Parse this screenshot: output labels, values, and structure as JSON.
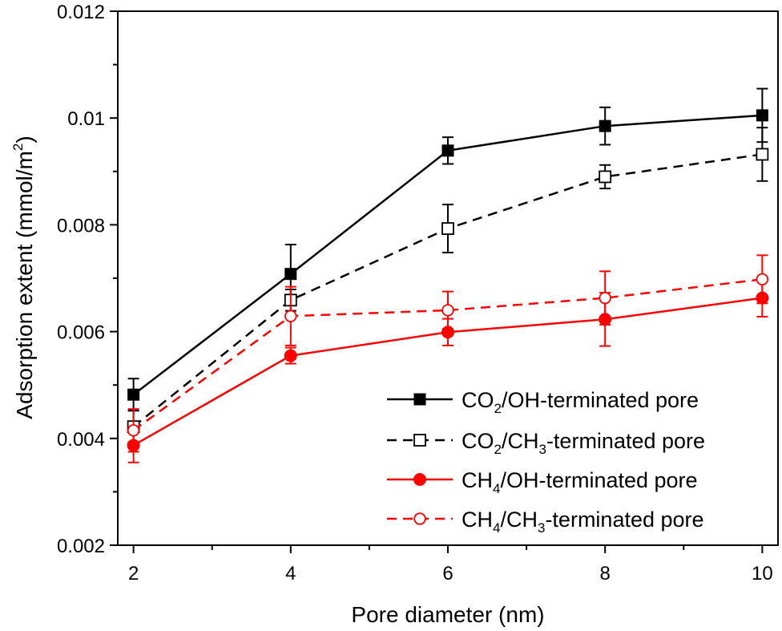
{
  "chart_data": {
    "type": "line",
    "title": "",
    "xlabel": "Pore diameter (nm)",
    "ylabel": "Adsorption extent (mmol/m2)",
    "ylabel_parts": {
      "main": "Adsorption extent (mmol/m",
      "sup": "2",
      "end": ")"
    },
    "xlim": [
      1.8,
      10.2
    ],
    "ylim": [
      0.002,
      0.012
    ],
    "x": [
      2,
      4,
      6,
      8,
      10
    ],
    "x_ticks": [
      2,
      4,
      6,
      8,
      10
    ],
    "x_tick_labels": [
      "2",
      "4",
      "6",
      "8",
      "10"
    ],
    "y_ticks": [
      0.002,
      0.004,
      0.006,
      0.008,
      0.01,
      0.012
    ],
    "y_tick_labels": [
      "0.002",
      "0.004",
      "0.006",
      "0.008",
      "0.01",
      "0.012"
    ],
    "legend_position": "bottom-right",
    "series": [
      {
        "name": "CO2/OH-terminated pore",
        "label_parts": [
          {
            "t": "CO"
          },
          {
            "t": "2",
            "sub": true
          },
          {
            "t": "/OH-terminated pore"
          }
        ],
        "values": [
          0.00482,
          0.00708,
          0.00939,
          0.00985,
          0.01005
        ],
        "err": [
          0.0003,
          0.00055,
          0.00025,
          0.00035,
          0.0005
        ],
        "color": "#000000",
        "dash": "solid",
        "marker": "square",
        "filled": true
      },
      {
        "name": "CO2/CH3-terminated pore",
        "label_parts": [
          {
            "t": "CO"
          },
          {
            "t": "2",
            "sub": true
          },
          {
            "t": "/CH"
          },
          {
            "t": "3",
            "sub": true
          },
          {
            "t": "-terminated pore"
          }
        ],
        "values": [
          0.00422,
          0.00659,
          0.00793,
          0.0089,
          0.00932
        ],
        "err": [
          0.0003,
          0.0002,
          0.00045,
          0.00022,
          0.0005
        ],
        "color": "#000000",
        "dash": "dashed",
        "marker": "square",
        "filled": false
      },
      {
        "name": "CH4/OH-terminated pore",
        "label_parts": [
          {
            "t": "CH"
          },
          {
            "t": "4",
            "sub": true
          },
          {
            "t": "/OH-terminated pore"
          }
        ],
        "values": [
          0.00387,
          0.00555,
          0.00599,
          0.00623,
          0.00663
        ],
        "err": [
          0.00032,
          0.00015,
          0.00025,
          0.0005,
          0.00035
        ],
        "color": "#ff0000",
        "dash": "solid",
        "marker": "circle",
        "filled": true
      },
      {
        "name": "CH4/CH3-terminated pore",
        "label_parts": [
          {
            "t": "CH"
          },
          {
            "t": "4",
            "sub": true
          },
          {
            "t": "/CH"
          },
          {
            "t": "3",
            "sub": true
          },
          {
            "t": "-terminated pore"
          }
        ],
        "values": [
          0.00415,
          0.00629,
          0.0064,
          0.00663,
          0.00698
        ],
        "err": [
          0.0004,
          0.00055,
          0.00035,
          0.0005,
          0.00045
        ],
        "color": "#ff0000",
        "dash": "dashed",
        "marker": "circle",
        "filled": false
      }
    ]
  }
}
